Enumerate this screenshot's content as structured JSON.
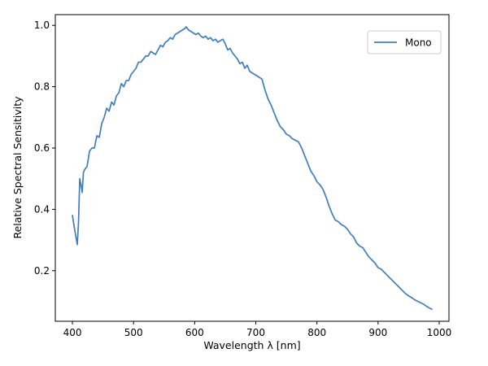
{
  "chart_data": {
    "type": "line",
    "title": "",
    "xlabel": "Wavelength λ [nm]",
    "ylabel": "Relative Spectral Sensitivity",
    "xlim": [
      372,
      1016
    ],
    "ylim": [
      0.035,
      1.035
    ],
    "xticks": [
      400,
      500,
      600,
      700,
      800,
      900,
      1000
    ],
    "yticks": [
      0.2,
      0.4,
      0.6,
      0.8,
      1.0
    ],
    "xtick_labels": [
      "400",
      "500",
      "600",
      "700",
      "800",
      "900",
      "1000"
    ],
    "ytick_labels": [
      "0.2",
      "0.4",
      "0.6",
      "0.8",
      "1.0"
    ],
    "grid": false,
    "legend": "upper-right",
    "series": [
      {
        "name": "Mono",
        "color": "#3f7fbf",
        "x": [
          400,
          404,
          408,
          410,
          412,
          414,
          416,
          418,
          420,
          424,
          428,
          432,
          436,
          440,
          444,
          448,
          452,
          456,
          460,
          464,
          468,
          472,
          476,
          480,
          484,
          488,
          492,
          496,
          500,
          504,
          508,
          512,
          516,
          520,
          524,
          528,
          532,
          536,
          540,
          544,
          548,
          552,
          556,
          560,
          564,
          568,
          572,
          576,
          580,
          584,
          586,
          590,
          594,
          598,
          602,
          606,
          610,
          614,
          618,
          622,
          626,
          630,
          634,
          638,
          642,
          646,
          650,
          654,
          658,
          662,
          666,
          670,
          674,
          678,
          682,
          686,
          690,
          694,
          698,
          702,
          706,
          710,
          715,
          720,
          725,
          730,
          735,
          740,
          745,
          750,
          755,
          760,
          765,
          770,
          775,
          780,
          785,
          790,
          795,
          800,
          805,
          810,
          815,
          820,
          825,
          830,
          835,
          840,
          845,
          850,
          855,
          860,
          865,
          870,
          875,
          880,
          885,
          890,
          895,
          900,
          905,
          910,
          915,
          920,
          925,
          930,
          935,
          940,
          945,
          950,
          955,
          960,
          965,
          970,
          975,
          980,
          985,
          988
        ],
        "y": [
          0.38,
          0.33,
          0.285,
          0.36,
          0.5,
          0.48,
          0.455,
          0.52,
          0.53,
          0.54,
          0.59,
          0.6,
          0.6,
          0.64,
          0.635,
          0.68,
          0.7,
          0.73,
          0.72,
          0.75,
          0.74,
          0.77,
          0.78,
          0.81,
          0.8,
          0.82,
          0.82,
          0.84,
          0.85,
          0.86,
          0.88,
          0.88,
          0.89,
          0.9,
          0.9,
          0.915,
          0.91,
          0.905,
          0.92,
          0.935,
          0.93,
          0.945,
          0.95,
          0.96,
          0.955,
          0.97,
          0.975,
          0.98,
          0.985,
          0.99,
          0.995,
          0.985,
          0.98,
          0.975,
          0.97,
          0.975,
          0.965,
          0.96,
          0.965,
          0.955,
          0.96,
          0.95,
          0.955,
          0.945,
          0.95,
          0.955,
          0.94,
          0.92,
          0.925,
          0.91,
          0.9,
          0.89,
          0.875,
          0.88,
          0.86,
          0.87,
          0.85,
          0.845,
          0.84,
          0.835,
          0.83,
          0.825,
          0.79,
          0.76,
          0.74,
          0.715,
          0.69,
          0.67,
          0.66,
          0.645,
          0.64,
          0.63,
          0.625,
          0.62,
          0.6,
          0.575,
          0.55,
          0.525,
          0.51,
          0.49,
          0.48,
          0.465,
          0.44,
          0.41,
          0.385,
          0.365,
          0.36,
          0.35,
          0.345,
          0.335,
          0.32,
          0.31,
          0.29,
          0.28,
          0.275,
          0.26,
          0.245,
          0.235,
          0.225,
          0.21,
          0.205,
          0.195,
          0.185,
          0.175,
          0.165,
          0.155,
          0.145,
          0.135,
          0.125,
          0.118,
          0.112,
          0.105,
          0.1,
          0.095,
          0.09,
          0.083,
          0.077,
          0.074
        ]
      }
    ]
  }
}
